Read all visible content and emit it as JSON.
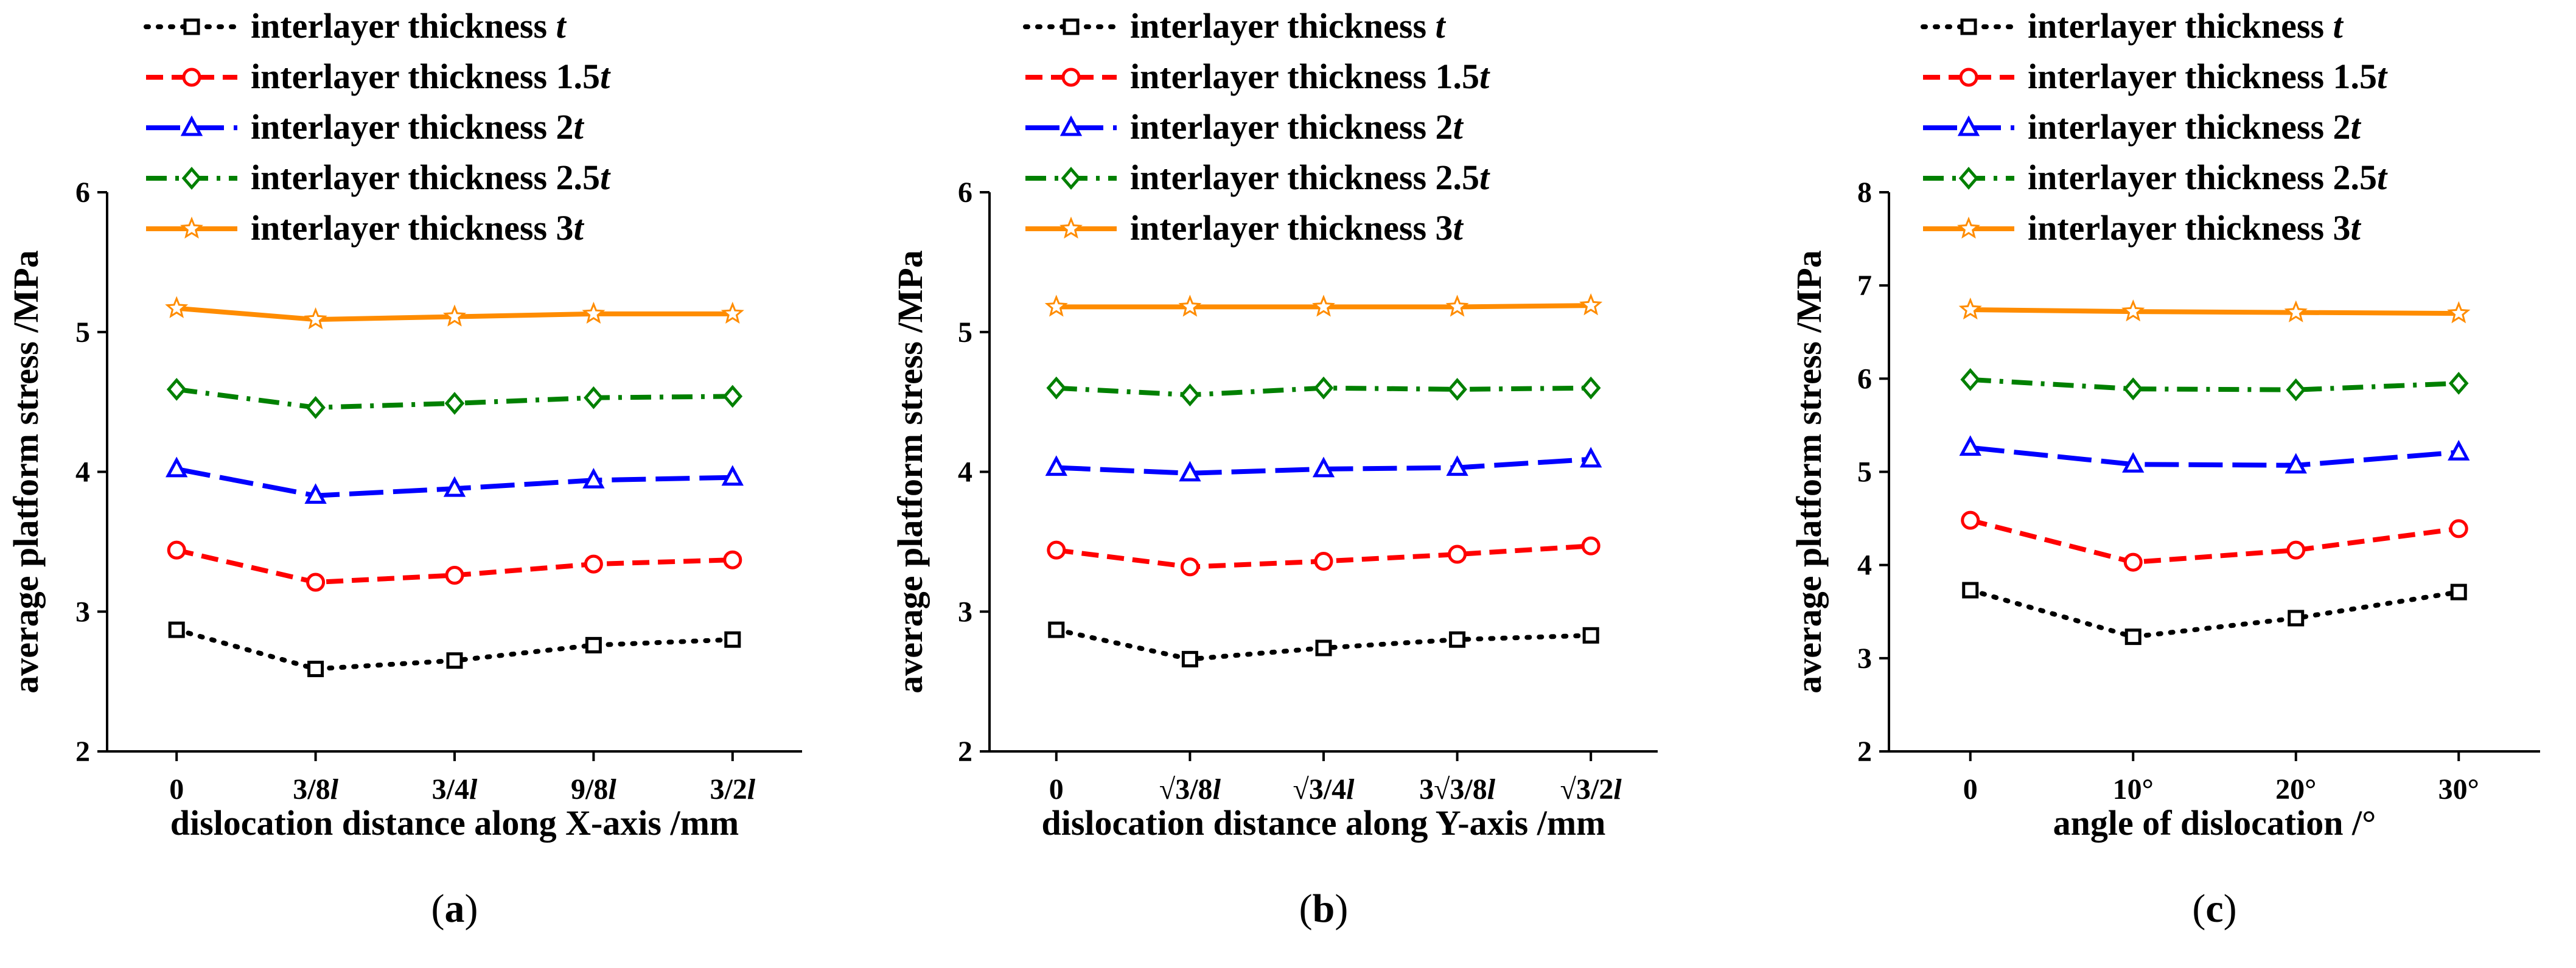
{
  "figure": {
    "panel_labels": [
      "(a)",
      "(b)",
      "(c)"
    ]
  },
  "chart_data": [
    {
      "type": "line",
      "panel": "(a)",
      "title": "",
      "xlabel": "dislocation distance along X-axis /mm",
      "ylabel": "average platform stress /MPa",
      "categories": [
        "0",
        "3/8l",
        "3/4l",
        "9/8l",
        "3/2l"
      ],
      "ylim": [
        2,
        6
      ],
      "yticks": [
        2,
        3,
        4,
        5,
        6
      ],
      "grid": false,
      "legend_position": "top",
      "series": [
        {
          "name": "interlayer thickness t",
          "color": "#000000",
          "marker": "square",
          "dash": "dot",
          "values": [
            2.87,
            2.59,
            2.65,
            2.76,
            2.8
          ]
        },
        {
          "name": "interlayer thickness 1.5t",
          "color": "#ff0000",
          "marker": "circle",
          "dash": "dash",
          "values": [
            3.44,
            3.21,
            3.26,
            3.34,
            3.37
          ]
        },
        {
          "name": "interlayer thickness 2t",
          "color": "#0000ff",
          "marker": "triangle",
          "dash": "longdash",
          "values": [
            4.02,
            3.83,
            3.88,
            3.94,
            3.96
          ]
        },
        {
          "name": "interlayer thickness 2.5t",
          "color": "#008000",
          "marker": "diamond",
          "dash": "dashdot",
          "values": [
            4.59,
            4.46,
            4.49,
            4.53,
            4.54
          ]
        },
        {
          "name": "interlayer thickness 3t",
          "color": "#ff8c00",
          "marker": "star",
          "dash": "solid",
          "values": [
            5.17,
            5.09,
            5.11,
            5.13,
            5.13
          ]
        }
      ]
    },
    {
      "type": "line",
      "panel": "(b)",
      "title": "",
      "xlabel": "dislocation distance along Y-axis /mm",
      "ylabel": "average platform stress /MPa",
      "categories": [
        "0",
        "√3/8l",
        "√3/4l",
        "3√3/8l",
        "√3/2l"
      ],
      "ylim": [
        2,
        6
      ],
      "yticks": [
        2,
        3,
        4,
        5,
        6
      ],
      "grid": false,
      "legend_position": "top",
      "series": [
        {
          "name": "interlayer thickness t",
          "color": "#000000",
          "marker": "square",
          "dash": "dot",
          "values": [
            2.87,
            2.66,
            2.74,
            2.8,
            2.83
          ]
        },
        {
          "name": "interlayer thickness 1.5t",
          "color": "#ff0000",
          "marker": "circle",
          "dash": "dash",
          "values": [
            3.44,
            3.32,
            3.36,
            3.41,
            3.47
          ]
        },
        {
          "name": "interlayer thickness 2t",
          "color": "#0000ff",
          "marker": "triangle",
          "dash": "longdash",
          "values": [
            4.03,
            3.99,
            4.02,
            4.03,
            4.09
          ]
        },
        {
          "name": "interlayer thickness 2.5t",
          "color": "#008000",
          "marker": "diamond",
          "dash": "dashdot",
          "values": [
            4.6,
            4.55,
            4.6,
            4.59,
            4.6
          ]
        },
        {
          "name": "interlayer thickness 3t",
          "color": "#ff8c00",
          "marker": "star",
          "dash": "solid",
          "values": [
            5.18,
            5.18,
            5.18,
            5.18,
            5.19
          ]
        }
      ]
    },
    {
      "type": "line",
      "panel": "(c)",
      "title": "",
      "xlabel": "angle of dislocation /°",
      "ylabel": "average platform stress /MPa",
      "categories": [
        "0",
        "10°",
        "20°",
        "30°"
      ],
      "ylim": [
        2,
        8
      ],
      "yticks": [
        2,
        3,
        4,
        5,
        6,
        7,
        8
      ],
      "grid": false,
      "legend_position": "top",
      "series": [
        {
          "name": "interlayer thickness t",
          "color": "#000000",
          "marker": "square",
          "dash": "dot",
          "values": [
            3.73,
            3.23,
            3.43,
            3.71
          ]
        },
        {
          "name": "interlayer thickness 1.5t",
          "color": "#ff0000",
          "marker": "circle",
          "dash": "dash",
          "values": [
            4.48,
            4.03,
            4.16,
            4.39
          ]
        },
        {
          "name": "interlayer thickness 2t",
          "color": "#0000ff",
          "marker": "triangle",
          "dash": "longdash",
          "values": [
            5.26,
            5.08,
            5.07,
            5.21
          ]
        },
        {
          "name": "interlayer thickness 2.5t",
          "color": "#008000",
          "marker": "diamond",
          "dash": "dashdot",
          "values": [
            5.99,
            5.89,
            5.88,
            5.95
          ]
        },
        {
          "name": "interlayer thickness 3t",
          "color": "#ff8c00",
          "marker": "star",
          "dash": "solid",
          "values": [
            6.74,
            6.72,
            6.71,
            6.7
          ]
        }
      ]
    }
  ]
}
